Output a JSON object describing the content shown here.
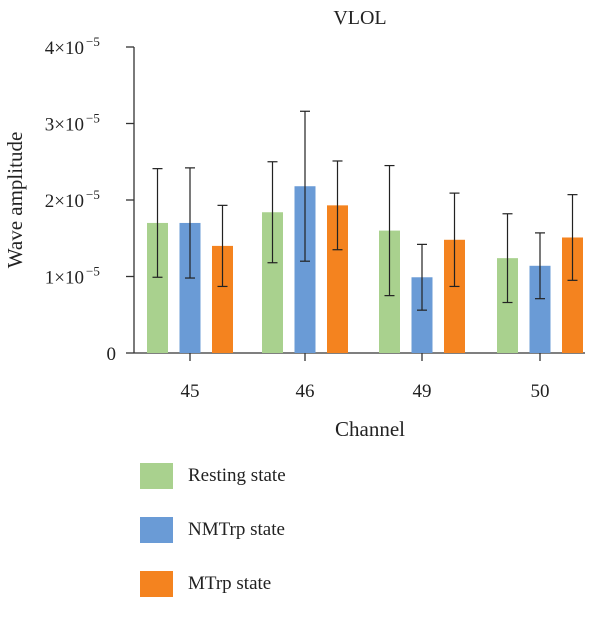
{
  "chart_data": {
    "type": "bar",
    "title": "VLOL",
    "xlabel": "Channel",
    "ylabel": "Wave amplitude",
    "categories": [
      "45",
      "46",
      "49",
      "50"
    ],
    "y_ticks": [
      {
        "value": 0,
        "label": "0"
      },
      {
        "value": 1e-05,
        "label": "1×10",
        "exp": "−5"
      },
      {
        "value": 2e-05,
        "label": "2×10",
        "exp": "−5"
      },
      {
        "value": 3e-05,
        "label": "3×10",
        "exp": "−5"
      },
      {
        "value": 4e-05,
        "label": "4×10",
        "exp": "−5"
      }
    ],
    "ylim": [
      0,
      4e-05
    ],
    "grid": false,
    "legend_position": "bottom",
    "series": [
      {
        "name": "Resting state",
        "color": "#a9d18e",
        "values": [
          1.7e-05,
          1.84e-05,
          1.6e-05,
          1.24e-05
        ],
        "error": [
          7.1e-06,
          6.6e-06,
          8.5e-06,
          5.8e-06
        ]
      },
      {
        "name": "NMTrp state",
        "color": "#6a9bd6",
        "values": [
          1.7e-05,
          2.18e-05,
          9.9e-06,
          1.14e-05
        ],
        "error": [
          7.2e-06,
          9.8e-06,
          4.3e-06,
          4.3e-06
        ]
      },
      {
        "name": "MTrp state",
        "color": "#f4831f",
        "values": [
          1.4e-05,
          1.93e-05,
          1.48e-05,
          1.51e-05
        ],
        "error": [
          5.3e-06,
          5.8e-06,
          6.1e-06,
          5.6e-06
        ]
      }
    ]
  }
}
